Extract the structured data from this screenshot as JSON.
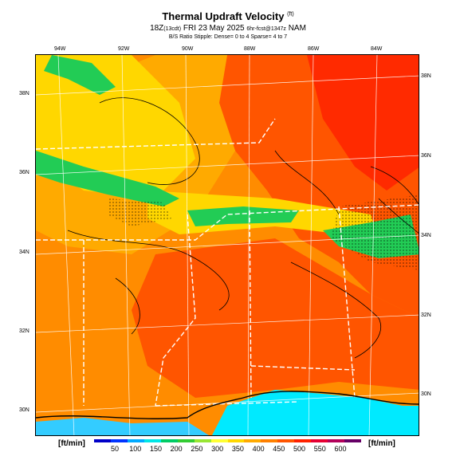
{
  "header": {
    "title": "Thermal Updraft Velocity",
    "title_unit": "(ft)",
    "subtitle_time": "18Z",
    "subtitle_local": "(13cdt)",
    "subtitle_date": "FRI 23 May 2025",
    "subtitle_run": "6hr-fcst@1347z",
    "subtitle_model": "NAM",
    "note": "B/S Ratio Stipple: Dense= 0 to 4 Sparse= 4 to 7"
  },
  "map": {
    "lon_labels": [
      "94W",
      "92W",
      "90W",
      "88W",
      "86W",
      "84W"
    ],
    "lat_labels_left": [
      "38N",
      "36N",
      "34N",
      "32N",
      "30N"
    ],
    "lat_labels_right": [
      "38N",
      "36N",
      "34N",
      "32N",
      "30N"
    ],
    "palette": {
      "red": "#ff2a00",
      "orange_red": "#ff5500",
      "orange": "#ff8c00",
      "orange_light": "#ffaa00",
      "yellow": "#ffd700",
      "yellow_light": "#ffff33",
      "green": "#22cc55",
      "teal": "#00aa77",
      "cyan": "#00eaff",
      "light_blue": "#33ccff",
      "boundary": "#ffffff",
      "contour": "#000000"
    }
  },
  "legend": {
    "units_left": "[ft/min]",
    "units_right": "[ft/min]",
    "ticks": [
      "50",
      "100",
      "150",
      "200",
      "250",
      "300",
      "350",
      "400",
      "450",
      "500",
      "550",
      "600"
    ],
    "colors": [
      "#0000c8",
      "#0033ff",
      "#00aaff",
      "#00e6e6",
      "#00cc66",
      "#33cc33",
      "#99e633",
      "#ffff33",
      "#ffd700",
      "#ffaa00",
      "#ff8000",
      "#ff5500",
      "#ff2200",
      "#e60033",
      "#b3005a",
      "#660066"
    ]
  }
}
